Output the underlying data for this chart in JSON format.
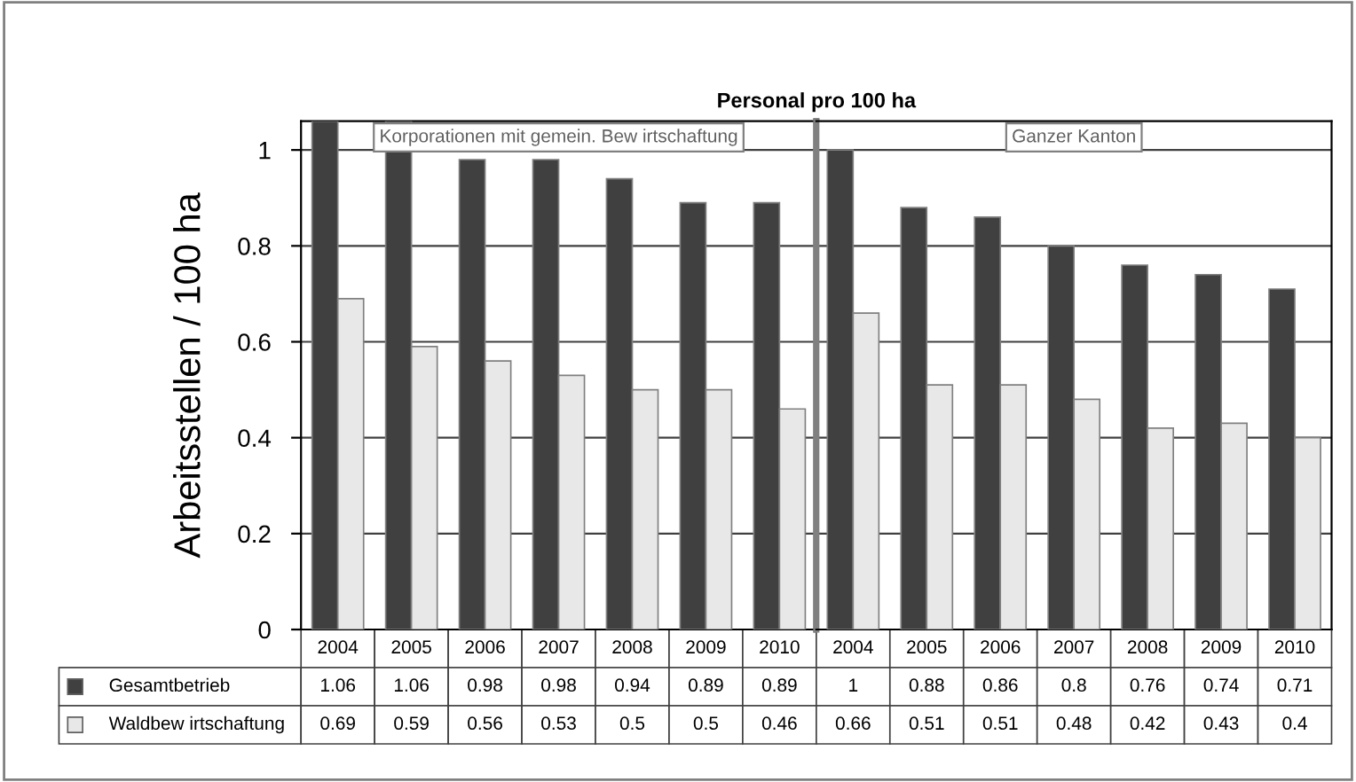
{
  "chart_data": [
    {
      "type": "bar",
      "title": "Personal pro 100 ha",
      "ylabel": "Arbeitsstellen / 100 ha",
      "categories": [
        "2004",
        "2005",
        "2006",
        "2007",
        "2008",
        "2009",
        "2010"
      ],
      "series": [
        {
          "name": "Gesamtbetrieb",
          "color": "#404040",
          "values": [
            1.06,
            1.06,
            0.98,
            0.98,
            0.94,
            0.89,
            0.89
          ]
        },
        {
          "name": "Waldbew irtschaftung",
          "color": "#e8e8e8",
          "values": [
            0.69,
            0.59,
            0.56,
            0.53,
            0.5,
            0.5,
            0.46
          ]
        }
      ],
      "annotations": [
        "Korporationen mit gemein. Bew irtschaftung"
      ],
      "ylim": [
        0,
        1.06
      ],
      "yticks": [
        0,
        0.2,
        0.4,
        0.6,
        0.8,
        1
      ],
      "grid": "y",
      "data_labels": true,
      "legend": "bottom"
    },
    {
      "type": "bar",
      "categories": [
        "2004",
        "2005",
        "2006",
        "2007",
        "2008",
        "2009",
        "2010"
      ],
      "series": [
        {
          "color": "#404040",
          "values": [
            1,
            0.88,
            0.86,
            0.8,
            0.76,
            0.74,
            0.71
          ]
        },
        {
          "color": "#e8e8e8",
          "values": [
            0.66,
            0.51,
            0.51,
            0.48,
            0.42,
            0.43,
            0.4
          ]
        }
      ],
      "annotations": [
        "Ganzer Kanton"
      ],
      "ylim": [
        0,
        1.06
      ],
      "yticks": [
        0,
        0.2,
        0.4,
        0.6,
        0.8,
        1
      ],
      "grid": "y",
      "data_labels": true,
      "tick_labels": "x"
    }
  ]
}
